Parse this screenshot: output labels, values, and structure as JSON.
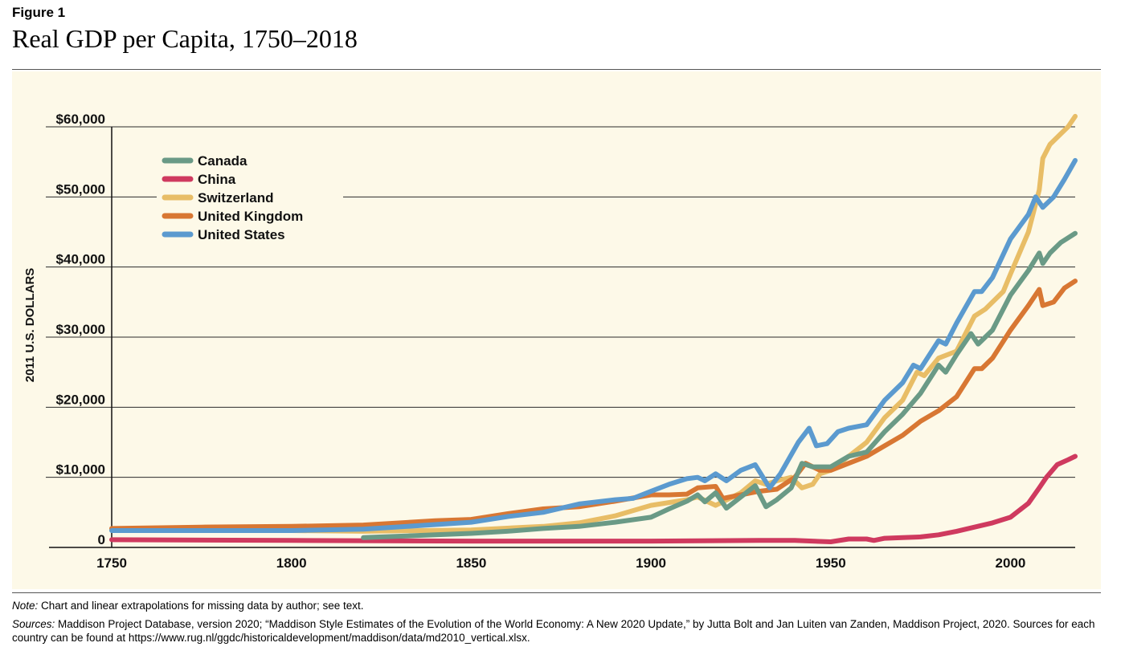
{
  "figure_label": "Figure 1",
  "title": "Real GDP per Capita, 1750–2018",
  "note_label": "Note:",
  "note_text": " Chart and linear extrapolations for missing data by author; see text.",
  "sources_label": "Sources:",
  "sources_text": " Maddison Project Database, version 2020; “Maddison Style Estimates of the Evolution of the World Economy: A New 2020 Update,” by Jutta Bolt and Jan Luiten van Zanden, Maddison Project, 2020. Sources for each country can be found at https://www.rug.nl/ggdc/historicaldevelopment/maddison/data/md2010_vertical.xlsx.",
  "chart_data": {
    "type": "line",
    "title": "Real GDP per Capita, 1750–2018",
    "xlabel": "",
    "ylabel": "2011 U.S. DOLLARS",
    "xlim": [
      1750,
      2018
    ],
    "ylim": [
      0,
      60000
    ],
    "x_ticks": [
      1750,
      1800,
      1850,
      1900,
      1950,
      2000
    ],
    "y_ticks": [
      0,
      10000,
      20000,
      30000,
      40000,
      50000,
      60000
    ],
    "y_tick_labels": [
      "0",
      "$10,000",
      "$20,000",
      "$30,000",
      "$40,000",
      "$50,000",
      "$60,000"
    ],
    "legend_position": "top-left",
    "series": [
      {
        "name": "Canada",
        "color": "#6a9a86",
        "points": [
          [
            1820,
            1400
          ],
          [
            1840,
            1800
          ],
          [
            1850,
            2000
          ],
          [
            1860,
            2300
          ],
          [
            1870,
            2700
          ],
          [
            1880,
            3000
          ],
          [
            1890,
            3600
          ],
          [
            1900,
            4300
          ],
          [
            1905,
            5500
          ],
          [
            1910,
            6600
          ],
          [
            1913,
            7500
          ],
          [
            1915,
            6500
          ],
          [
            1918,
            7800
          ],
          [
            1921,
            5600
          ],
          [
            1924,
            6800
          ],
          [
            1929,
            8800
          ],
          [
            1932,
            5800
          ],
          [
            1935,
            6800
          ],
          [
            1939,
            8500
          ],
          [
            1942,
            12000
          ],
          [
            1945,
            11500
          ],
          [
            1950,
            11500
          ],
          [
            1955,
            13000
          ],
          [
            1960,
            13600
          ],
          [
            1965,
            16500
          ],
          [
            1970,
            19000
          ],
          [
            1975,
            22000
          ],
          [
            1980,
            26000
          ],
          [
            1982,
            25000
          ],
          [
            1985,
            27500
          ],
          [
            1989,
            30500
          ],
          [
            1991,
            29000
          ],
          [
            1995,
            31000
          ],
          [
            2000,
            36000
          ],
          [
            2005,
            39500
          ],
          [
            2008,
            42000
          ],
          [
            2009,
            40500
          ],
          [
            2011,
            42000
          ],
          [
            2014,
            43500
          ],
          [
            2018,
            44800
          ]
        ]
      },
      {
        "name": "China",
        "color": "#cf3a5f",
        "points": [
          [
            1750,
            1100
          ],
          [
            1800,
            1000
          ],
          [
            1850,
            900
          ],
          [
            1900,
            900
          ],
          [
            1930,
            1000
          ],
          [
            1940,
            1000
          ],
          [
            1950,
            800
          ],
          [
            1955,
            1200
          ],
          [
            1960,
            1200
          ],
          [
            1962,
            1000
          ],
          [
            1965,
            1300
          ],
          [
            1970,
            1400
          ],
          [
            1975,
            1500
          ],
          [
            1980,
            1800
          ],
          [
            1985,
            2300
          ],
          [
            1990,
            2900
          ],
          [
            1995,
            3500
          ],
          [
            2000,
            4300
          ],
          [
            2005,
            6300
          ],
          [
            2008,
            8500
          ],
          [
            2010,
            10000
          ],
          [
            2013,
            11800
          ],
          [
            2016,
            12500
          ],
          [
            2018,
            13000
          ]
        ]
      },
      {
        "name": "Switzerland",
        "color": "#e8bd66",
        "points": [
          [
            1750,
            2500
          ],
          [
            1800,
            2400
          ],
          [
            1820,
            2300
          ],
          [
            1850,
            2500
          ],
          [
            1870,
            3000
          ],
          [
            1880,
            3500
          ],
          [
            1890,
            4500
          ],
          [
            1900,
            6000
          ],
          [
            1910,
            6800
          ],
          [
            1913,
            7200
          ],
          [
            1918,
            6000
          ],
          [
            1920,
            6500
          ],
          [
            1925,
            7800
          ],
          [
            1929,
            9500
          ],
          [
            1932,
            9000
          ],
          [
            1935,
            9500
          ],
          [
            1939,
            10000
          ],
          [
            1942,
            8500
          ],
          [
            1945,
            9000
          ],
          [
            1947,
            10500
          ],
          [
            1950,
            11000
          ],
          [
            1955,
            13000
          ],
          [
            1960,
            15000
          ],
          [
            1965,
            18500
          ],
          [
            1970,
            21000
          ],
          [
            1974,
            25000
          ],
          [
            1976,
            24500
          ],
          [
            1980,
            27000
          ],
          [
            1985,
            28000
          ],
          [
            1990,
            33000
          ],
          [
            1993,
            34000
          ],
          [
            1998,
            36500
          ],
          [
            2000,
            39000
          ],
          [
            2005,
            45000
          ],
          [
            2008,
            51000
          ],
          [
            2009,
            55500
          ],
          [
            2011,
            57500
          ],
          [
            2014,
            59000
          ],
          [
            2016,
            60000
          ],
          [
            2018,
            61500
          ]
        ]
      },
      {
        "name": "United Kingdom",
        "color": "#d87733",
        "points": [
          [
            1750,
            2700
          ],
          [
            1775,
            2900
          ],
          [
            1800,
            3000
          ],
          [
            1820,
            3200
          ],
          [
            1840,
            3800
          ],
          [
            1850,
            4000
          ],
          [
            1860,
            4800
          ],
          [
            1870,
            5500
          ],
          [
            1880,
            5800
          ],
          [
            1890,
            6600
          ],
          [
            1900,
            7500
          ],
          [
            1905,
            7500
          ],
          [
            1910,
            7600
          ],
          [
            1913,
            8500
          ],
          [
            1918,
            8700
          ],
          [
            1920,
            7000
          ],
          [
            1925,
            7500
          ],
          [
            1930,
            8000
          ],
          [
            1935,
            8300
          ],
          [
            1940,
            10000
          ],
          [
            1943,
            12000
          ],
          [
            1947,
            11000
          ],
          [
            1950,
            11000
          ],
          [
            1955,
            12000
          ],
          [
            1960,
            13000
          ],
          [
            1965,
            14500
          ],
          [
            1970,
            16000
          ],
          [
            1975,
            18000
          ],
          [
            1980,
            19500
          ],
          [
            1985,
            21500
          ],
          [
            1990,
            25500
          ],
          [
            1992,
            25500
          ],
          [
            1995,
            27000
          ],
          [
            2000,
            31000
          ],
          [
            2005,
            34500
          ],
          [
            2008,
            36800
          ],
          [
            2009,
            34500
          ],
          [
            2012,
            35000
          ],
          [
            2015,
            37000
          ],
          [
            2018,
            38000
          ]
        ]
      },
      {
        "name": "United States",
        "color": "#5b9acf",
        "points": [
          [
            1750,
            2400
          ],
          [
            1800,
            2400
          ],
          [
            1820,
            2600
          ],
          [
            1850,
            3600
          ],
          [
            1860,
            4400
          ],
          [
            1870,
            5000
          ],
          [
            1880,
            6200
          ],
          [
            1890,
            6800
          ],
          [
            1895,
            7000
          ],
          [
            1900,
            8000
          ],
          [
            1905,
            9000
          ],
          [
            1910,
            9800
          ],
          [
            1913,
            10000
          ],
          [
            1915,
            9500
          ],
          [
            1918,
            10500
          ],
          [
            1921,
            9500
          ],
          [
            1925,
            11000
          ],
          [
            1929,
            11800
          ],
          [
            1933,
            8500
          ],
          [
            1936,
            10500
          ],
          [
            1941,
            15000
          ],
          [
            1944,
            17000
          ],
          [
            1946,
            14500
          ],
          [
            1949,
            14800
          ],
          [
            1952,
            16500
          ],
          [
            1955,
            17000
          ],
          [
            1960,
            17500
          ],
          [
            1965,
            21000
          ],
          [
            1970,
            23500
          ],
          [
            1973,
            26000
          ],
          [
            1975,
            25500
          ],
          [
            1980,
            29500
          ],
          [
            1982,
            29000
          ],
          [
            1985,
            32000
          ],
          [
            1990,
            36500
          ],
          [
            1992,
            36500
          ],
          [
            1995,
            38500
          ],
          [
            2000,
            44000
          ],
          [
            2005,
            47500
          ],
          [
            2007,
            50000
          ],
          [
            2009,
            48500
          ],
          [
            2012,
            50000
          ],
          [
            2015,
            52500
          ],
          [
            2018,
            55200
          ]
        ]
      }
    ]
  },
  "theme": {
    "panel_bg": "#fdf9e8",
    "grid": "#2a2a2a"
  }
}
